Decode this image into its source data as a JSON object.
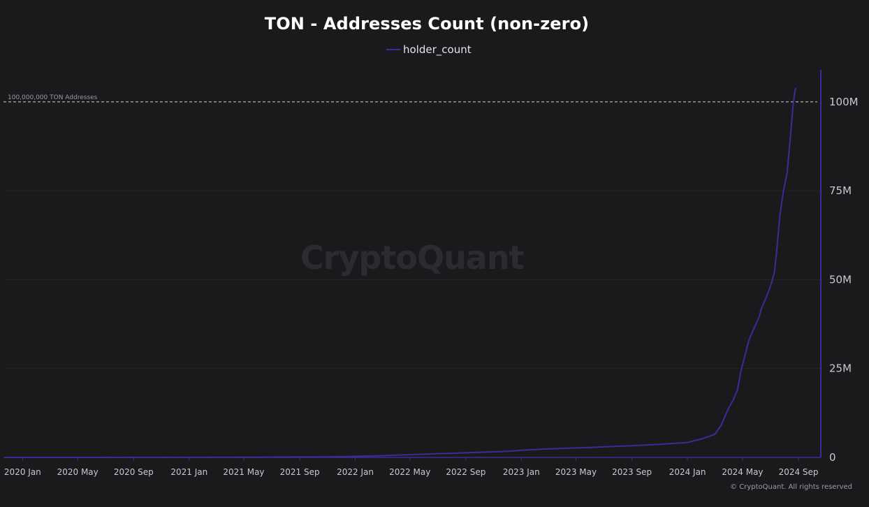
{
  "colors": {
    "background": "#1a1a1d",
    "line": "#3f2a99",
    "axis": "#3f2a99",
    "grid": "#26262a",
    "threshold": "#d6d6d6",
    "tick_text": "#c9c9cf"
  },
  "watermark": "CryptoQuant",
  "copyright": "© CryptoQuant. All rights reserved",
  "chart_data": {
    "type": "line",
    "title": "TON - Addresses Count (non-zero)",
    "xlabel": "",
    "ylabel": "",
    "legend": {
      "position": "top-center",
      "entries": [
        "holder_count"
      ]
    },
    "grid": true,
    "y_axis_position": "right",
    "xlim": [
      "2019-11-20",
      "2024-10-20"
    ],
    "ylim": [
      0,
      109000000
    ],
    "x_ticks": [
      {
        "date": "2020-01-01",
        "label": "2020 Jan"
      },
      {
        "date": "2020-05-01",
        "label": "2020 May"
      },
      {
        "date": "2020-09-01",
        "label": "2020 Sep"
      },
      {
        "date": "2021-01-01",
        "label": "2021 Jan"
      },
      {
        "date": "2021-05-01",
        "label": "2021 May"
      },
      {
        "date": "2021-09-01",
        "label": "2021 Sep"
      },
      {
        "date": "2022-01-01",
        "label": "2022 Jan"
      },
      {
        "date": "2022-05-01",
        "label": "2022 May"
      },
      {
        "date": "2022-09-01",
        "label": "2022 Sep"
      },
      {
        "date": "2023-01-01",
        "label": "2023 Jan"
      },
      {
        "date": "2023-05-01",
        "label": "2023 May"
      },
      {
        "date": "2023-09-01",
        "label": "2023 Sep"
      },
      {
        "date": "2024-01-01",
        "label": "2024 Jan"
      },
      {
        "date": "2024-05-01",
        "label": "2024 May"
      },
      {
        "date": "2024-09-01",
        "label": "2024 Sep"
      }
    ],
    "y_ticks": [
      {
        "value": 0,
        "label": "0"
      },
      {
        "value": 25000000,
        "label": "25M"
      },
      {
        "value": 50000000,
        "label": "50M"
      },
      {
        "value": 75000000,
        "label": "75M"
      },
      {
        "value": 100000000,
        "label": "100M"
      }
    ],
    "annotations": [
      {
        "type": "hline",
        "value": 100000000,
        "label": "100,000,000 TON Addresses"
      }
    ],
    "series": [
      {
        "name": "holder_count",
        "points": [
          [
            "2019-11-22",
            0
          ],
          [
            "2020-06-01",
            5000
          ],
          [
            "2021-01-01",
            20000
          ],
          [
            "2021-06-01",
            60000
          ],
          [
            "2021-12-01",
            200000
          ],
          [
            "2022-03-01",
            500000
          ],
          [
            "2022-06-01",
            900000
          ],
          [
            "2022-09-01",
            1300000
          ],
          [
            "2022-12-01",
            1700000
          ],
          [
            "2023-01-01",
            2000000
          ],
          [
            "2023-03-01",
            2400000
          ],
          [
            "2023-06-01",
            2800000
          ],
          [
            "2023-09-01",
            3300000
          ],
          [
            "2023-11-01",
            3700000
          ],
          [
            "2024-01-01",
            4200000
          ],
          [
            "2024-02-01",
            5200000
          ],
          [
            "2024-03-01",
            6500000
          ],
          [
            "2024-03-15",
            9000000
          ],
          [
            "2024-03-25",
            12000000
          ],
          [
            "2024-04-01",
            14000000
          ],
          [
            "2024-04-10",
            16000000
          ],
          [
            "2024-04-20",
            19000000
          ],
          [
            "2024-04-27",
            24000000
          ],
          [
            "2024-05-05",
            28000000
          ],
          [
            "2024-05-15",
            33000000
          ],
          [
            "2024-05-25",
            36000000
          ],
          [
            "2024-06-05",
            39000000
          ],
          [
            "2024-06-12",
            42000000
          ],
          [
            "2024-06-22",
            45000000
          ],
          [
            "2024-07-01",
            48000000
          ],
          [
            "2024-07-10",
            52000000
          ],
          [
            "2024-07-15",
            58000000
          ],
          [
            "2024-07-22",
            68000000
          ],
          [
            "2024-07-30",
            75000000
          ],
          [
            "2024-08-07",
            80000000
          ],
          [
            "2024-08-14",
            90000000
          ],
          [
            "2024-08-20",
            99000000
          ],
          [
            "2024-08-24",
            103000000
          ],
          [
            "2024-08-26",
            104000000
          ]
        ]
      }
    ]
  }
}
